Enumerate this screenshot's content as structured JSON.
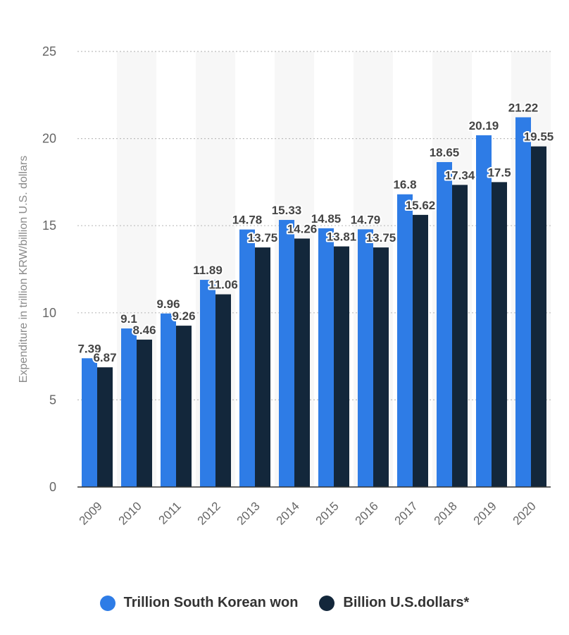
{
  "chart_data": {
    "type": "bar",
    "categories": [
      "2009",
      "2010",
      "2011",
      "2012",
      "2013",
      "2014",
      "2015",
      "2016",
      "2017",
      "2018",
      "2019",
      "2020"
    ],
    "series": [
      {
        "name": "Trillion South Korean won",
        "color": "#2e7ce6",
        "values": [
          7.39,
          9.1,
          9.96,
          11.89,
          14.78,
          15.33,
          14.85,
          14.79,
          16.8,
          18.65,
          20.19,
          21.22
        ]
      },
      {
        "name": "Billion U.S.dollars*",
        "color": "#13273b",
        "values": [
          6.87,
          8.46,
          9.26,
          11.06,
          13.75,
          14.26,
          13.81,
          13.75,
          15.62,
          17.34,
          17.5,
          19.55
        ]
      }
    ],
    "ylabel": "Expenditure in trillion KRW/billion U.S. dollars",
    "xlabel": "",
    "ylim": [
      0,
      25
    ],
    "yticks": [
      "0",
      "5",
      "10",
      "15",
      "20",
      "25"
    ],
    "grid": true,
    "legend_position": "bottom"
  }
}
